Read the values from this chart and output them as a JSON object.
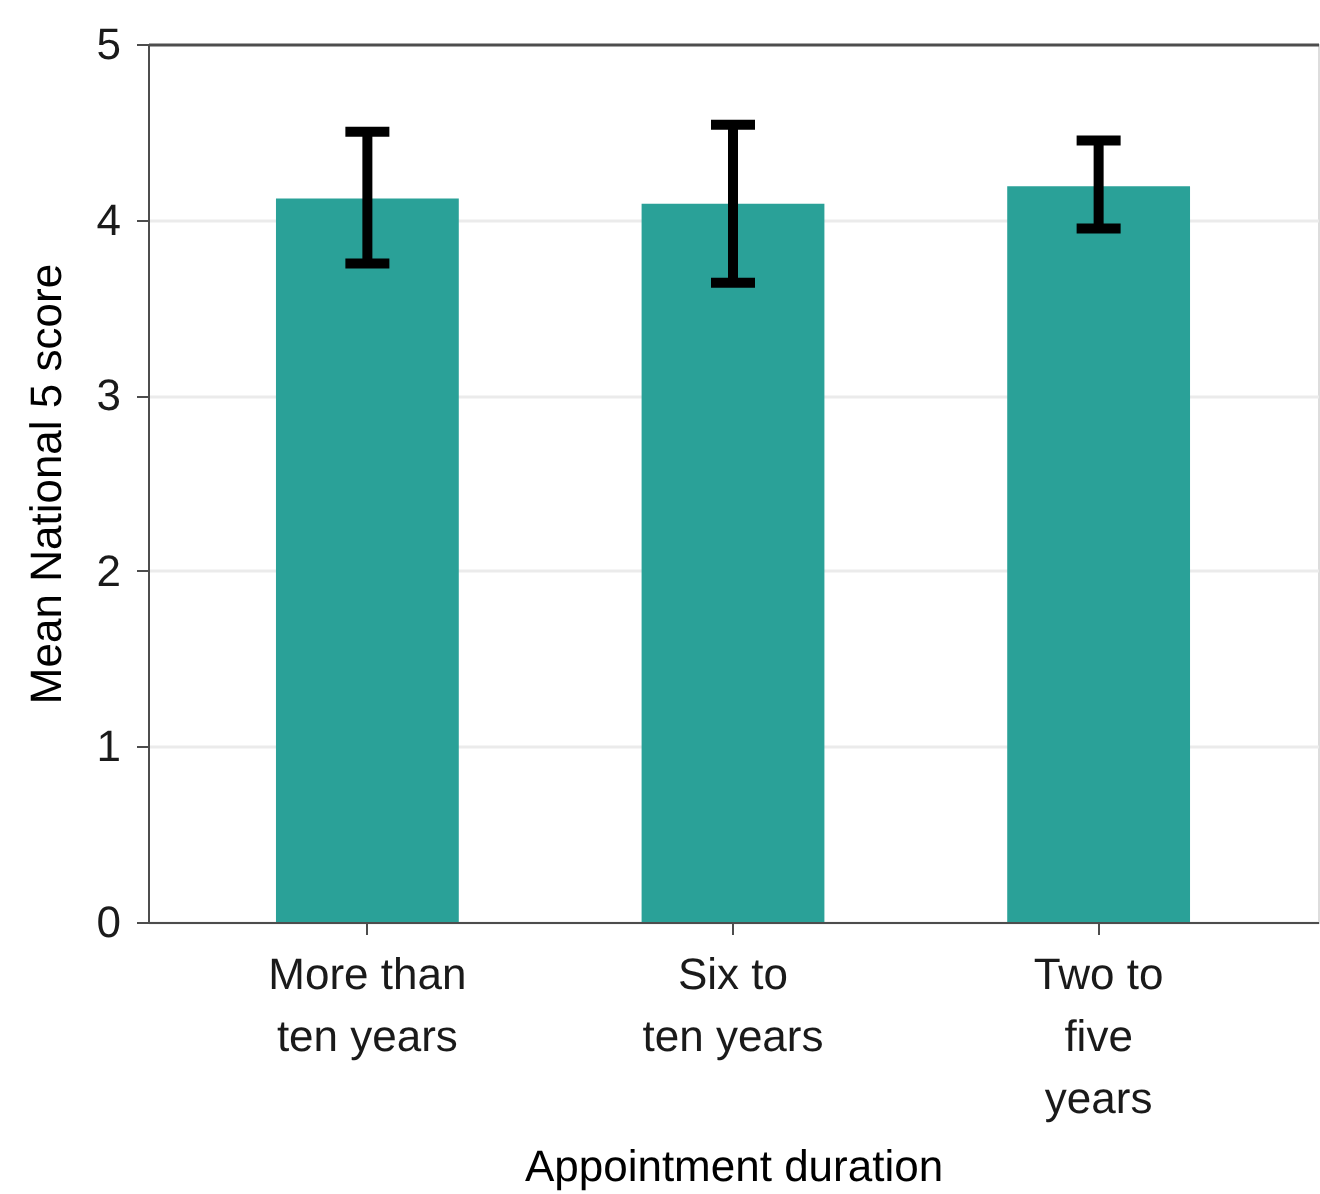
{
  "chart_data": {
    "type": "bar",
    "xlabel": "Appointment duration",
    "ylabel": "Mean National 5 score",
    "categories": [
      "More than ten years",
      "Six to ten years",
      "Two to five years"
    ],
    "values": [
      4.12,
      4.09,
      4.19
    ],
    "color": "#2aa198",
    "errors": [
      [
        3.75,
        4.5
      ],
      [
        3.64,
        4.54
      ],
      [
        3.95,
        4.45
      ]
    ],
    "ylim": [
      0,
      5
    ],
    "yticks": [
      0,
      1,
      2,
      3,
      4,
      5
    ],
    "grid": "y"
  }
}
